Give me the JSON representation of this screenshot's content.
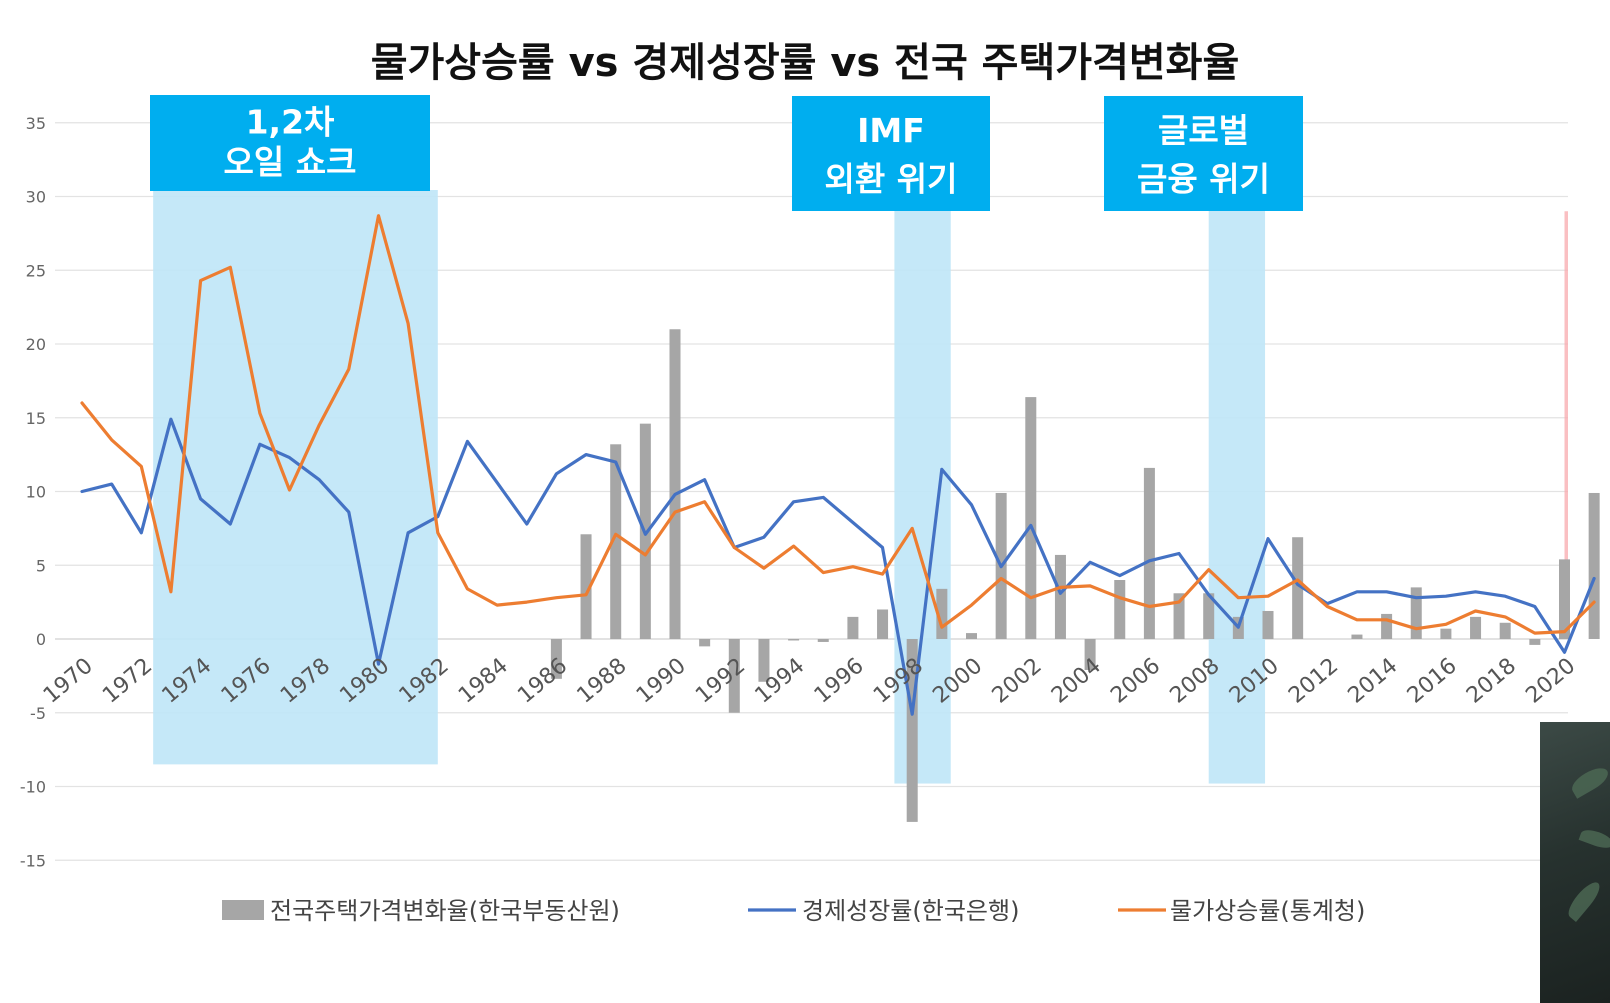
{
  "chart_data": {
    "type": "bar+line",
    "title": "물가상승률 vs 경제성장률 vs 전국 주택가격변화율",
    "ylim": [
      -15,
      35
    ],
    "yticks": [
      35,
      30,
      25,
      20,
      15,
      10,
      5,
      0,
      -5,
      -10,
      -15
    ],
    "xlim": [
      1970,
      2021
    ],
    "xticks": [
      "1970",
      "1972",
      "1974",
      "1976",
      "1978",
      "1980",
      "1982",
      "1984",
      "1986",
      "1988",
      "1990",
      "1992",
      "1994",
      "1996",
      "1998",
      "2000",
      "2002",
      "2004",
      "2006",
      "2008",
      "2010",
      "2012",
      "2014",
      "2016",
      "2018",
      "2020"
    ],
    "grid": true,
    "legend_position": "bottom",
    "x": [
      1970,
      1971,
      1972,
      1973,
      1974,
      1975,
      1976,
      1977,
      1978,
      1979,
      1980,
      1981,
      1982,
      1983,
      1984,
      1985,
      1986,
      1987,
      1988,
      1989,
      1990,
      1991,
      1992,
      1993,
      1994,
      1995,
      1996,
      1997,
      1998,
      1999,
      2000,
      2001,
      2002,
      2003,
      2004,
      2005,
      2006,
      2007,
      2008,
      2009,
      2010,
      2011,
      2012,
      2013,
      2014,
      2015,
      2016,
      2017,
      2018,
      2019,
      2020,
      2021
    ],
    "series": [
      {
        "name": "전국주택가격변화율(한국부동산원)",
        "type": "bar",
        "color": "#a6a6a6",
        "values": [
          null,
          null,
          null,
          null,
          null,
          null,
          null,
          null,
          null,
          null,
          null,
          null,
          null,
          null,
          null,
          null,
          -2.7,
          7.1,
          13.2,
          14.6,
          21.0,
          -0.5,
          -5.0,
          -2.9,
          -0.1,
          -0.2,
          1.5,
          2.0,
          -12.4,
          3.4,
          0.4,
          9.9,
          16.4,
          5.7,
          -2.1,
          4.0,
          11.6,
          3.1,
          3.1,
          1.5,
          1.9,
          6.9,
          0.0,
          0.3,
          1.7,
          3.5,
          0.7,
          1.5,
          1.1,
          -0.4,
          5.4,
          9.9
        ]
      },
      {
        "name": "경제성장률(한국은행)",
        "type": "line",
        "color": "#4472c4",
        "values": [
          10.0,
          10.5,
          7.2,
          14.9,
          9.5,
          7.8,
          13.2,
          12.3,
          10.8,
          8.6,
          -1.7,
          7.2,
          8.3,
          13.4,
          10.6,
          7.8,
          11.2,
          12.5,
          12.0,
          7.1,
          9.8,
          10.8,
          6.2,
          6.9,
          9.3,
          9.6,
          7.9,
          6.2,
          -5.1,
          11.5,
          9.1,
          4.9,
          7.7,
          3.1,
          5.2,
          4.3,
          5.3,
          5.8,
          3.0,
          0.8,
          6.8,
          3.7,
          2.4,
          3.2,
          3.2,
          2.8,
          2.9,
          3.2,
          2.9,
          2.2,
          -0.9,
          4.1
        ]
      },
      {
        "name": "물가상승률(통계청)",
        "type": "line",
        "color": "#ed7d31",
        "values": [
          16.0,
          13.5,
          11.7,
          3.2,
          24.3,
          25.2,
          15.3,
          10.1,
          14.5,
          18.3,
          28.7,
          21.4,
          7.2,
          3.4,
          2.3,
          2.5,
          2.8,
          3.0,
          7.1,
          5.7,
          8.6,
          9.3,
          6.2,
          4.8,
          6.3,
          4.5,
          4.9,
          4.4,
          7.5,
          0.8,
          2.3,
          4.1,
          2.8,
          3.5,
          3.6,
          2.8,
          2.2,
          2.5,
          4.7,
          2.8,
          2.9,
          4.0,
          2.2,
          1.3,
          1.3,
          0.7,
          1.0,
          1.9,
          1.5,
          0.4,
          0.5,
          2.5
        ]
      }
    ],
    "annotations": [
      {
        "line1": "1,2차",
        "line2": "오일 쇼크",
        "x_from": 1972.4,
        "x_to": 1982.0,
        "y_low": -8.5
      },
      {
        "line1": "IMF",
        "line2": "외환 위기",
        "x_from": 1997.4,
        "x_to": 1999.3,
        "y_low": -9.8
      },
      {
        "line1": "글로벌",
        "line2": "금융 위기",
        "x_from": 2008.0,
        "x_to": 2009.9,
        "y_low": -9.8
      }
    ],
    "highlight_region": {
      "x_from": 2020.0,
      "x_to": 2021.2,
      "y_high": 29.0,
      "color": "#f8a9ad"
    }
  },
  "colors": {
    "band_light": "#bfe6f7",
    "band_header": "#00aeef",
    "grid": "#e3e3e3"
  }
}
